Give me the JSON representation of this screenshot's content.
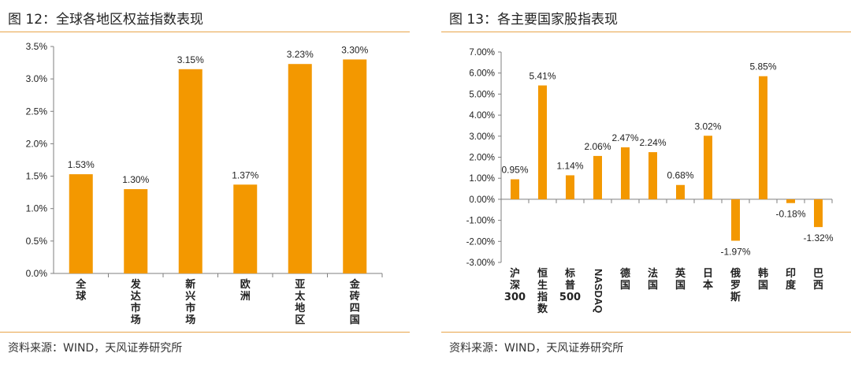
{
  "colors": {
    "bar": "#F39800",
    "rule": "#E8A54A",
    "axis": "#7f7f7f"
  },
  "left": {
    "title": "图 12：全球各地区权益指数表现",
    "source": "资料来源：WIND，天风证券研究所"
  },
  "right": {
    "title": "图 13：各主要国家股指表现",
    "source": "资料来源：WIND，天风证券研究所"
  },
  "chart_data": [
    {
      "type": "bar",
      "categories": [
        "全球",
        "发达市场",
        "新兴市场",
        "欧洲",
        "亚太地区",
        "金砖四国"
      ],
      "values": [
        1.53,
        1.3,
        3.15,
        1.37,
        3.23,
        3.3
      ],
      "data_labels": [
        "1.53%",
        "1.30%",
        "3.15%",
        "1.37%",
        "3.23%",
        "3.30%"
      ],
      "ylim": [
        0,
        3.5
      ],
      "yticks": [
        "0.0%",
        "0.5%",
        "1.0%",
        "1.5%",
        "2.0%",
        "2.5%",
        "3.0%",
        "3.5%"
      ],
      "grid": false,
      "xlabel": "",
      "ylabel": ""
    },
    {
      "type": "bar",
      "categories": [
        "沪深300",
        "恒生指数",
        "标普500",
        "NASDAQ",
        "德国",
        "法国",
        "英国",
        "日本",
        "俄罗斯",
        "韩国",
        "印度",
        "巴西"
      ],
      "values": [
        0.95,
        5.41,
        1.14,
        2.06,
        2.47,
        2.24,
        0.68,
        3.02,
        -1.97,
        5.85,
        -0.18,
        -1.32
      ],
      "data_labels": [
        "0.95%",
        "5.41%",
        "1.14%",
        "2.06%",
        "2.47%",
        "2.24%",
        "0.68%",
        "3.02%",
        "-1.97%",
        "5.85%",
        "-0.18%",
        "-1.32%"
      ],
      "ylim": [
        -3,
        7
      ],
      "yticks": [
        "-3.00%",
        "-2.00%",
        "-1.00%",
        "0.00%",
        "1.00%",
        "2.00%",
        "3.00%",
        "4.00%",
        "5.00%",
        "6.00%",
        "7.00%"
      ],
      "grid": false,
      "xlabel": "",
      "ylabel": ""
    }
  ]
}
